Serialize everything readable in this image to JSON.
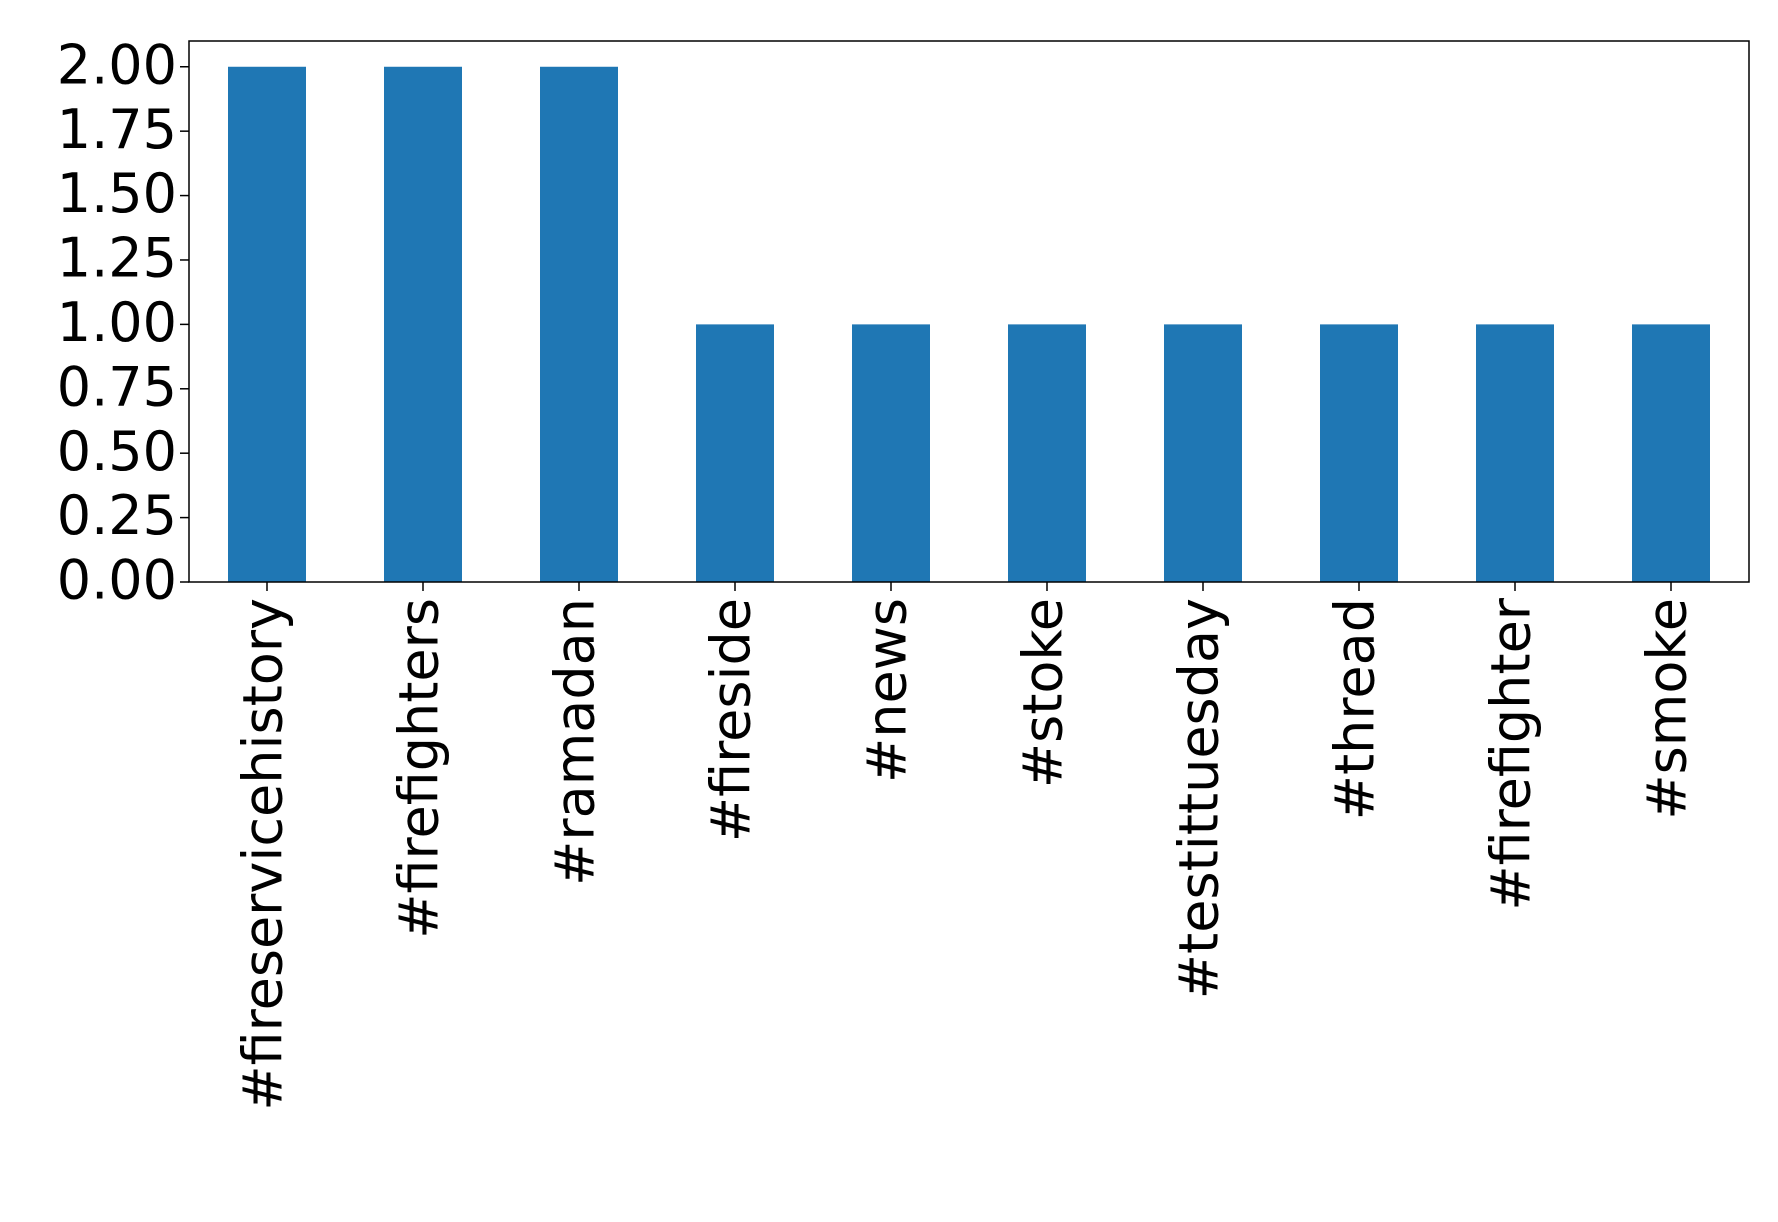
{
  "chart_data": {
    "type": "bar",
    "categories": [
      "#fireservicehistory",
      "#firefighters",
      "#ramadan",
      "#fireside",
      "#news",
      "#stoke",
      "#testittuesday",
      "#thread",
      "#firefighter",
      "#smoke"
    ],
    "values": [
      2,
      2,
      2,
      1,
      1,
      1,
      1,
      1,
      1,
      1
    ],
    "color": "#1f77b4",
    "ylim": [
      0,
      2.1
    ],
    "yticks": [
      {
        "value": 0,
        "label": "0.00"
      },
      {
        "value": 0.25,
        "label": "0.25"
      },
      {
        "value": 0.5,
        "label": "0.50"
      },
      {
        "value": 0.75,
        "label": "0.75"
      },
      {
        "value": 1,
        "label": "1.00"
      },
      {
        "value": 1.25,
        "label": "1.25"
      },
      {
        "value": 1.5,
        "label": "1.50"
      },
      {
        "value": 1.75,
        "label": "1.75"
      },
      {
        "value": 2,
        "label": "2.00"
      }
    ],
    "grid": false
  }
}
